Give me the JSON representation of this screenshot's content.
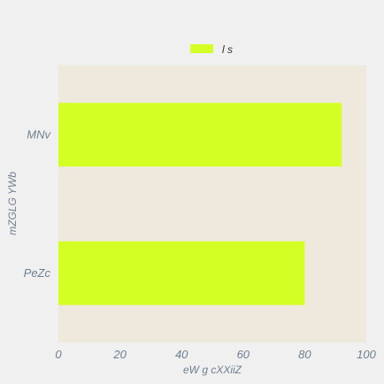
{
  "chart_data": {
    "type": "bar",
    "orientation": "horizontal",
    "categories": [
      "PeZc",
      "MNv"
    ],
    "series": [
      {
        "name": "l s",
        "values": [
          80,
          92
        ]
      }
    ],
    "title": "",
    "xlabel": "eW g cXXiiZ",
    "ylabel": "mZGLG YWb",
    "xlim": [
      0,
      100
    ],
    "xticks": [
      0,
      20,
      40,
      60,
      80,
      100
    ],
    "grid": false,
    "legend": "top-center"
  },
  "colors": {
    "background": "#f0f0f0",
    "plot_area": "#efe8dc",
    "bar": "#d4ff24",
    "text": "#6f7f90"
  }
}
